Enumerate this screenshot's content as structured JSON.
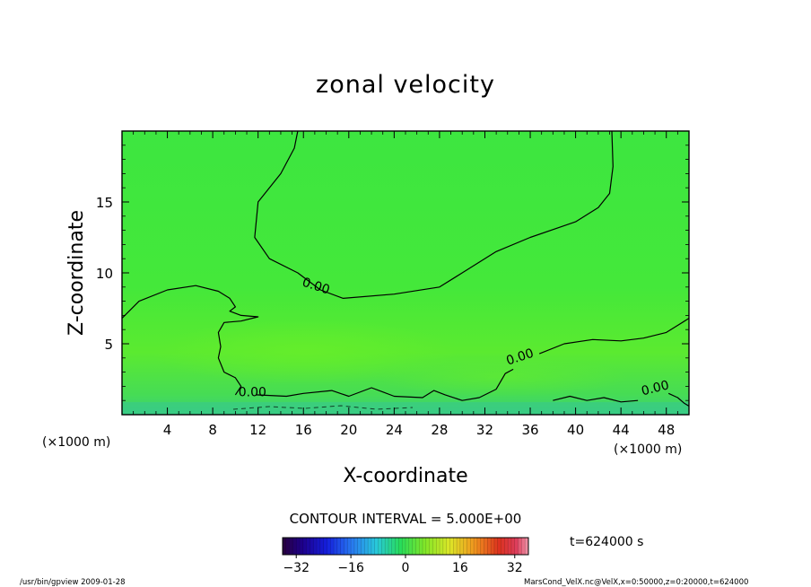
{
  "chart_data": {
    "type": "heatmap",
    "title": "zonal velocity",
    "xlabel": "X-coordinate",
    "ylabel": "Z-coordinate",
    "x_unit_left": "(×1000 m)",
    "x_unit_right": "(×1000 m)",
    "xlim": [
      0,
      50
    ],
    "ylim": [
      0,
      20
    ],
    "x_ticks": [
      4,
      8,
      12,
      16,
      20,
      24,
      28,
      32,
      36,
      40,
      44,
      48
    ],
    "y_ticks": [
      5,
      10,
      15
    ],
    "contour_interval_label": "CONTOUR INTERVAL = 5.000E+00",
    "time_label": "t=624000 s",
    "contour_labels": [
      {
        "text": "0.00",
        "x": 17.0,
        "y": 8.8
      },
      {
        "text": "0.00",
        "x": 35.2,
        "y": 3.8
      },
      {
        "text": "0.00",
        "x": 11.5,
        "y": 1.3
      },
      {
        "text": "0.00",
        "x": 47.1,
        "y": 1.6
      }
    ],
    "zero_contours": [
      [
        [
          15.5,
          20
        ],
        [
          15.2,
          18.8
        ],
        [
          14.0,
          17.0
        ],
        [
          12.0,
          15.0
        ],
        [
          11.7,
          12.5
        ],
        [
          13.0,
          11.0
        ],
        [
          15.5,
          10.0
        ],
        [
          17.5,
          8.8
        ],
        [
          19.5,
          8.2
        ],
        [
          24.0,
          8.5
        ],
        [
          28.0,
          9.0
        ],
        [
          30.0,
          10.0
        ],
        [
          33.0,
          11.5
        ],
        [
          36.0,
          12.5
        ],
        [
          40.0,
          13.6
        ],
        [
          42.0,
          14.6
        ],
        [
          43.0,
          15.6
        ],
        [
          43.3,
          17.5
        ],
        [
          43.2,
          20
        ]
      ],
      [
        [
          0,
          6.8
        ],
        [
          1.5,
          8.0
        ],
        [
          4.0,
          8.8
        ],
        [
          6.5,
          9.1
        ],
        [
          8.5,
          8.7
        ],
        [
          9.5,
          8.2
        ],
        [
          10.0,
          7.6
        ],
        [
          9.5,
          7.3
        ],
        [
          10.5,
          7.0
        ],
        [
          12.0,
          6.9
        ],
        [
          10.5,
          6.6
        ],
        [
          9.0,
          6.5
        ],
        [
          8.5,
          5.8
        ],
        [
          8.7,
          4.8
        ],
        [
          8.5,
          4.0
        ],
        [
          9.0,
          3.0
        ],
        [
          10.0,
          2.6
        ],
        [
          10.5,
          2.0
        ],
        [
          10.0,
          1.4
        ]
      ],
      [
        [
          11.8,
          1.4
        ],
        [
          14.5,
          1.3
        ],
        [
          16.0,
          1.5
        ],
        [
          18.5,
          1.7
        ],
        [
          20.0,
          1.3
        ],
        [
          22.0,
          1.9
        ],
        [
          23.0,
          1.6
        ],
        [
          24.0,
          1.3
        ],
        [
          26.5,
          1.2
        ],
        [
          27.5,
          1.7
        ],
        [
          28.5,
          1.4
        ],
        [
          30.0,
          1.0
        ],
        [
          31.5,
          1.2
        ],
        [
          33.0,
          1.8
        ],
        [
          33.8,
          2.9
        ],
        [
          34.5,
          3.2
        ]
      ],
      [
        [
          36.8,
          4.3
        ],
        [
          39.0,
          5.0
        ],
        [
          41.5,
          5.3
        ],
        [
          44.0,
          5.2
        ],
        [
          46.0,
          5.4
        ],
        [
          48.0,
          5.8
        ],
        [
          49.0,
          6.3
        ],
        [
          50,
          6.8
        ]
      ],
      [
        [
          38.0,
          1.0
        ],
        [
          39.5,
          1.3
        ],
        [
          41.0,
          1.0
        ],
        [
          42.5,
          1.2
        ],
        [
          44.0,
          0.9
        ],
        [
          45.5,
          1.0
        ]
      ],
      [
        [
          48.2,
          1.5
        ],
        [
          49.0,
          1.2
        ],
        [
          49.6,
          0.8
        ],
        [
          50,
          0.6
        ]
      ]
    ],
    "colorbar": {
      "ticks": [
        -32,
        -16,
        0,
        16,
        32
      ],
      "range": [
        -36,
        36
      ]
    }
  },
  "footer": {
    "left": "/usr/bin/gpview   2009-01-28",
    "right": "MarsCond_VelX.nc@VelX,x=0:50000,z=0:20000,t=624000"
  }
}
